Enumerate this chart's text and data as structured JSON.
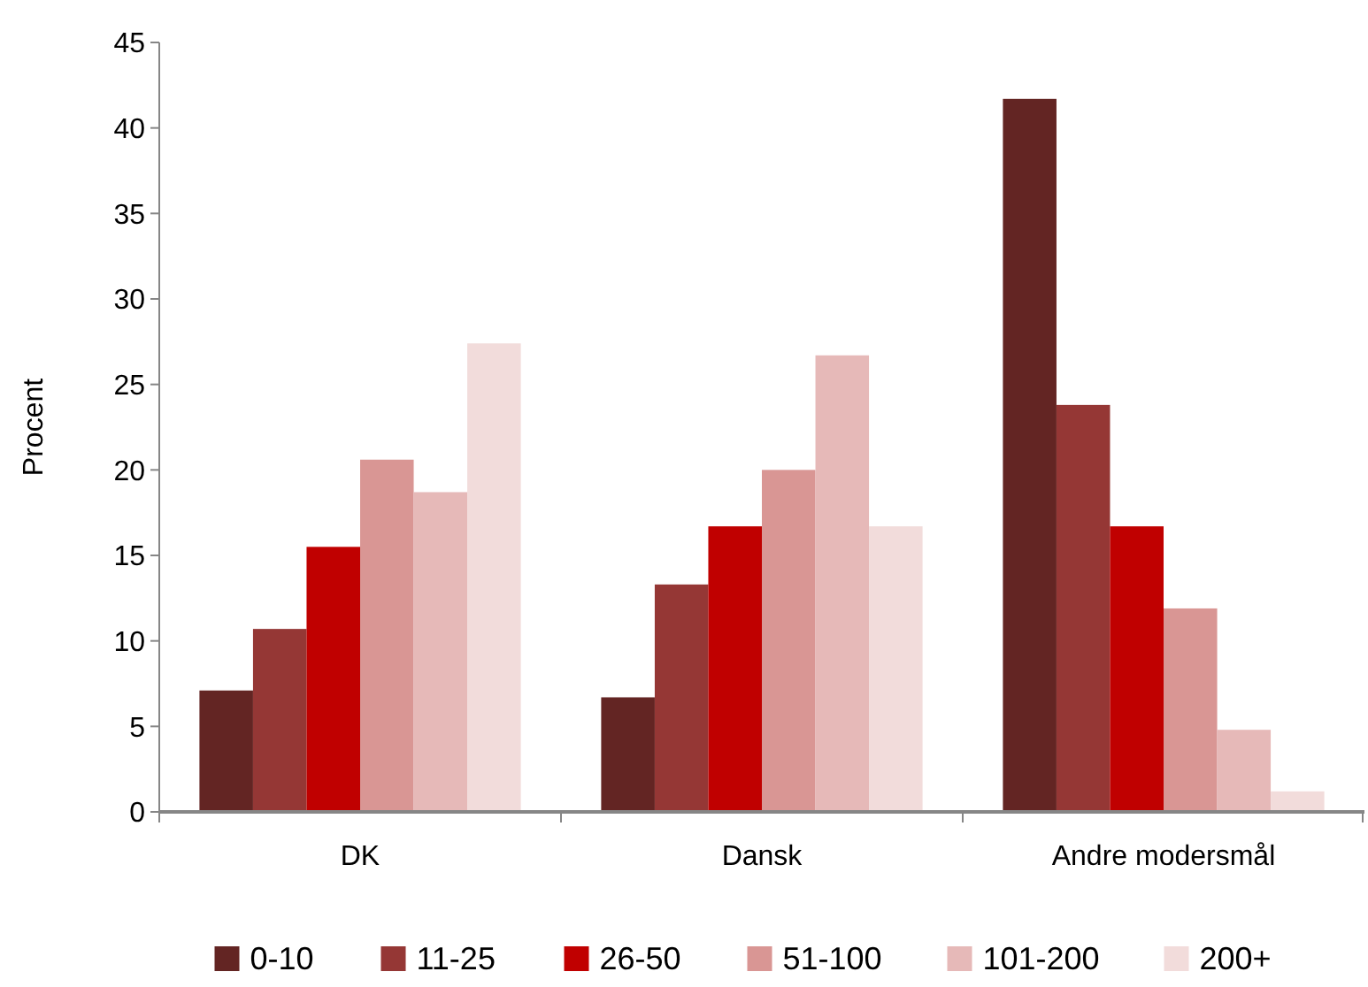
{
  "chart_data": {
    "type": "bar",
    "ylabel": "Procent",
    "categories": [
      "DK",
      "Dansk",
      "Andre modersmål"
    ],
    "series": [
      {
        "name": "0-10",
        "color": "#632523",
        "values": [
          7.1,
          6.7,
          41.7
        ]
      },
      {
        "name": "11-25",
        "color": "#953735",
        "values": [
          10.7,
          13.3,
          23.8
        ]
      },
      {
        "name": "26-50",
        "color": "#c00000",
        "values": [
          15.5,
          16.7,
          16.7
        ]
      },
      {
        "name": "51-100",
        "color": "#d99694",
        "values": [
          20.6,
          20.0,
          11.9
        ]
      },
      {
        "name": "101-200",
        "color": "#e6b9b8",
        "values": [
          18.7,
          26.7,
          4.8
        ]
      },
      {
        "name": "200+",
        "color": "#f2dcdb",
        "values": [
          27.4,
          16.7,
          1.2
        ]
      }
    ],
    "ylim": [
      0,
      45
    ],
    "yticks": [
      0,
      5,
      10,
      15,
      20,
      25,
      30,
      35,
      40,
      45
    ],
    "grid": false,
    "legend": "bottom"
  }
}
